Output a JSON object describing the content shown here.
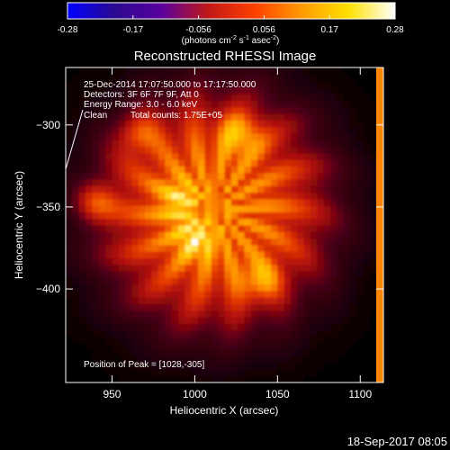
{
  "colorbar": {
    "ticks": [
      "-0.28",
      "-0.17",
      "-0.056",
      "0.056",
      "0.17",
      "0.28"
    ],
    "units_prefix": "(photons cm",
    "units_sup1": "-2",
    "units_mid1": " s",
    "units_sup2": "-1",
    "units_mid2": " asec",
    "units_sup3": "-2",
    "units_suffix": ")",
    "colors": [
      "#0000ff",
      "#2a0a90",
      "#5a00a0",
      "#c01818",
      "#ff4000",
      "#ff9a00",
      "#ffe000",
      "#ffffff"
    ]
  },
  "chart_data": {
    "type": "heatmap",
    "title": "Reconstructed RHESSI Image",
    "xlabel": "Heliocentric X (arcsec)",
    "ylabel": "Heliocentric Y (arcsec)",
    "x_ticks": [
      950,
      1000,
      1050,
      1100
    ],
    "y_ticks": [
      -300,
      -350,
      -400
    ],
    "xlim": [
      922,
      1114
    ],
    "ylim": [
      -457,
      -265
    ],
    "color_range": [
      -0.28,
      0.28
    ],
    "peaks": [
      {
        "x": 965,
        "y": -305,
        "value": 0.25
      },
      {
        "x": 1028,
        "y": -305,
        "value": 0.28
      },
      {
        "x": 940,
        "y": -347,
        "value": 0.27
      },
      {
        "x": 1000,
        "y": -370,
        "value": 0.24
      },
      {
        "x": 1040,
        "y": -395,
        "value": 0.25
      },
      {
        "x": 990,
        "y": -345,
        "value": 0.2
      }
    ],
    "annotations": {
      "line1": "25-Dec-2014 17:07:50.000 to 17:17:50.000",
      "line2": "Detectors: 3F 6F 7F 9F, Att 0",
      "line3": "Energy Range: 3.0 - 6.0 keV",
      "line4_a": "Clean",
      "line4_b": "Total counts: 1.75E+05",
      "peak_label": "Position of Peak = [1028,-305]"
    }
  },
  "footer": {
    "date": "18-Sep-2017 08:05"
  }
}
